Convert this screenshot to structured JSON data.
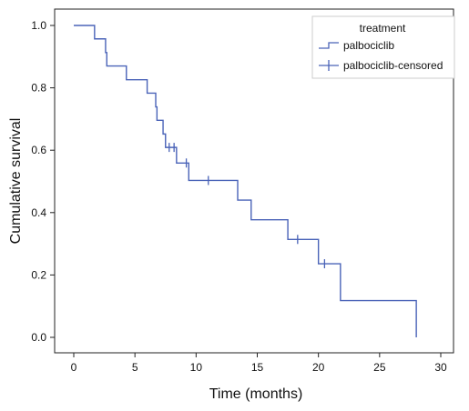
{
  "chart_data": {
    "type": "line",
    "subtype": "kaplan-meier-step",
    "xlabel": "Time (months)",
    "ylabel": "Cumulative survival",
    "xlim": [
      0,
      30
    ],
    "ylim": [
      0,
      1.0
    ],
    "x_ticks": [
      "0",
      "5",
      "10",
      "15",
      "20",
      "25",
      "30"
    ],
    "y_ticks": [
      "0.0",
      "0.2",
      "0.4",
      "0.6",
      "0.8",
      "1.0"
    ],
    "grid": false,
    "legend": {
      "placement": "top-right",
      "title": "treatment",
      "entries": [
        "palbociclib",
        "palbociclib-censored"
      ]
    },
    "series": [
      {
        "name": "palbociclib",
        "color": "#4a63b8",
        "x": [
          0,
          1.7,
          2.6,
          2.7,
          4.3,
          6.0,
          6.7,
          6.8,
          7.3,
          7.5,
          8.4,
          9.4,
          13.4,
          14.5,
          17.5,
          20.0,
          21.8,
          28.0
        ],
        "y": [
          1.0,
          0.957,
          0.913,
          0.87,
          0.826,
          0.783,
          0.739,
          0.696,
          0.652,
          0.609,
          0.559,
          0.503,
          0.44,
          0.377,
          0.314,
          0.236,
          0.118,
          0.0
        ]
      },
      {
        "name": "palbociclib-censored",
        "color": "#4a63b8",
        "x": [
          7.8,
          8.2,
          9.2,
          11.0,
          18.3,
          20.5
        ],
        "y": [
          0.609,
          0.609,
          0.559,
          0.503,
          0.314,
          0.236
        ]
      }
    ]
  }
}
